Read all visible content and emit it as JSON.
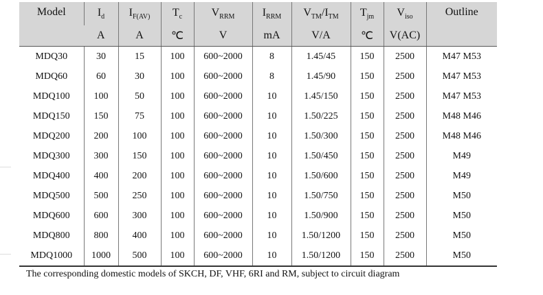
{
  "table": {
    "header": [
      {
        "parts": [
          {
            "t": "Model"
          }
        ]
      },
      {
        "parts": [
          {
            "t": "I"
          },
          {
            "sub": "d"
          }
        ]
      },
      {
        "parts": [
          {
            "t": "I"
          },
          {
            "sub": "F(AV)"
          }
        ]
      },
      {
        "parts": [
          {
            "t": "T"
          },
          {
            "sub": "c"
          }
        ]
      },
      {
        "parts": [
          {
            "t": "V"
          },
          {
            "sub": "RRM"
          }
        ]
      },
      {
        "parts": [
          {
            "t": "I"
          },
          {
            "sub": "RRM"
          }
        ]
      },
      {
        "parts": [
          {
            "t": "V"
          },
          {
            "sub": "TM"
          },
          {
            "t": "/I"
          },
          {
            "sub": "TM"
          }
        ]
      },
      {
        "parts": [
          {
            "t": "T"
          },
          {
            "sub": "jm"
          }
        ]
      },
      {
        "parts": [
          {
            "t": "V"
          },
          {
            "sub": "iso"
          }
        ]
      },
      {
        "parts": [
          {
            "t": "Outline"
          }
        ]
      }
    ],
    "units": [
      "A",
      "A",
      "℃",
      "V",
      "mA",
      "V/A",
      "℃",
      "V(AC)"
    ],
    "rows": [
      [
        "MDQ30",
        "30",
        "15",
        "100",
        "600~2000",
        "8",
        "1.45/45",
        "150",
        "2500",
        "M47 M53"
      ],
      [
        "MDQ60",
        "60",
        "30",
        "100",
        "600~2000",
        "8",
        "1.45/90",
        "150",
        "2500",
        "M47 M53"
      ],
      [
        "MDQ100",
        "100",
        "50",
        "100",
        "600~2000",
        "10",
        "1.45/150",
        "150",
        "2500",
        "M47 M53"
      ],
      [
        "MDQ150",
        "150",
        "75",
        "100",
        "600~2000",
        "10",
        "1.50/225",
        "150",
        "2500",
        "M48 M46"
      ],
      [
        "MDQ200",
        "200",
        "100",
        "100",
        "600~2000",
        "10",
        "1.50/300",
        "150",
        "2500",
        "M48 M46"
      ],
      [
        "MDQ300",
        "300",
        "150",
        "100",
        "600~2000",
        "10",
        "1.50/450",
        "150",
        "2500",
        "M49"
      ],
      [
        "MDQ400",
        "400",
        "200",
        "100",
        "600~2000",
        "10",
        "1.50/600",
        "150",
        "2500",
        "M49"
      ],
      [
        "MDQ500",
        "500",
        "250",
        "100",
        "600~2000",
        "10",
        "1.50/750",
        "150",
        "2500",
        "M50"
      ],
      [
        "MDQ600",
        "600",
        "300",
        "100",
        "600~2000",
        "10",
        "1.50/900",
        "150",
        "2500",
        "M50"
      ],
      [
        "MDQ800",
        "800",
        "400",
        "100",
        "600~2000",
        "10",
        "1.50/1200",
        "150",
        "2500",
        "M50"
      ],
      [
        "MDQ1000",
        "1000",
        "500",
        "100",
        "600~2000",
        "10",
        "1.50/1200",
        "150",
        "2500",
        "M50"
      ]
    ]
  },
  "footer": "The corresponding domestic models of SKCH, DF, VHF, 6RI and RM, subject to circuit diagram"
}
